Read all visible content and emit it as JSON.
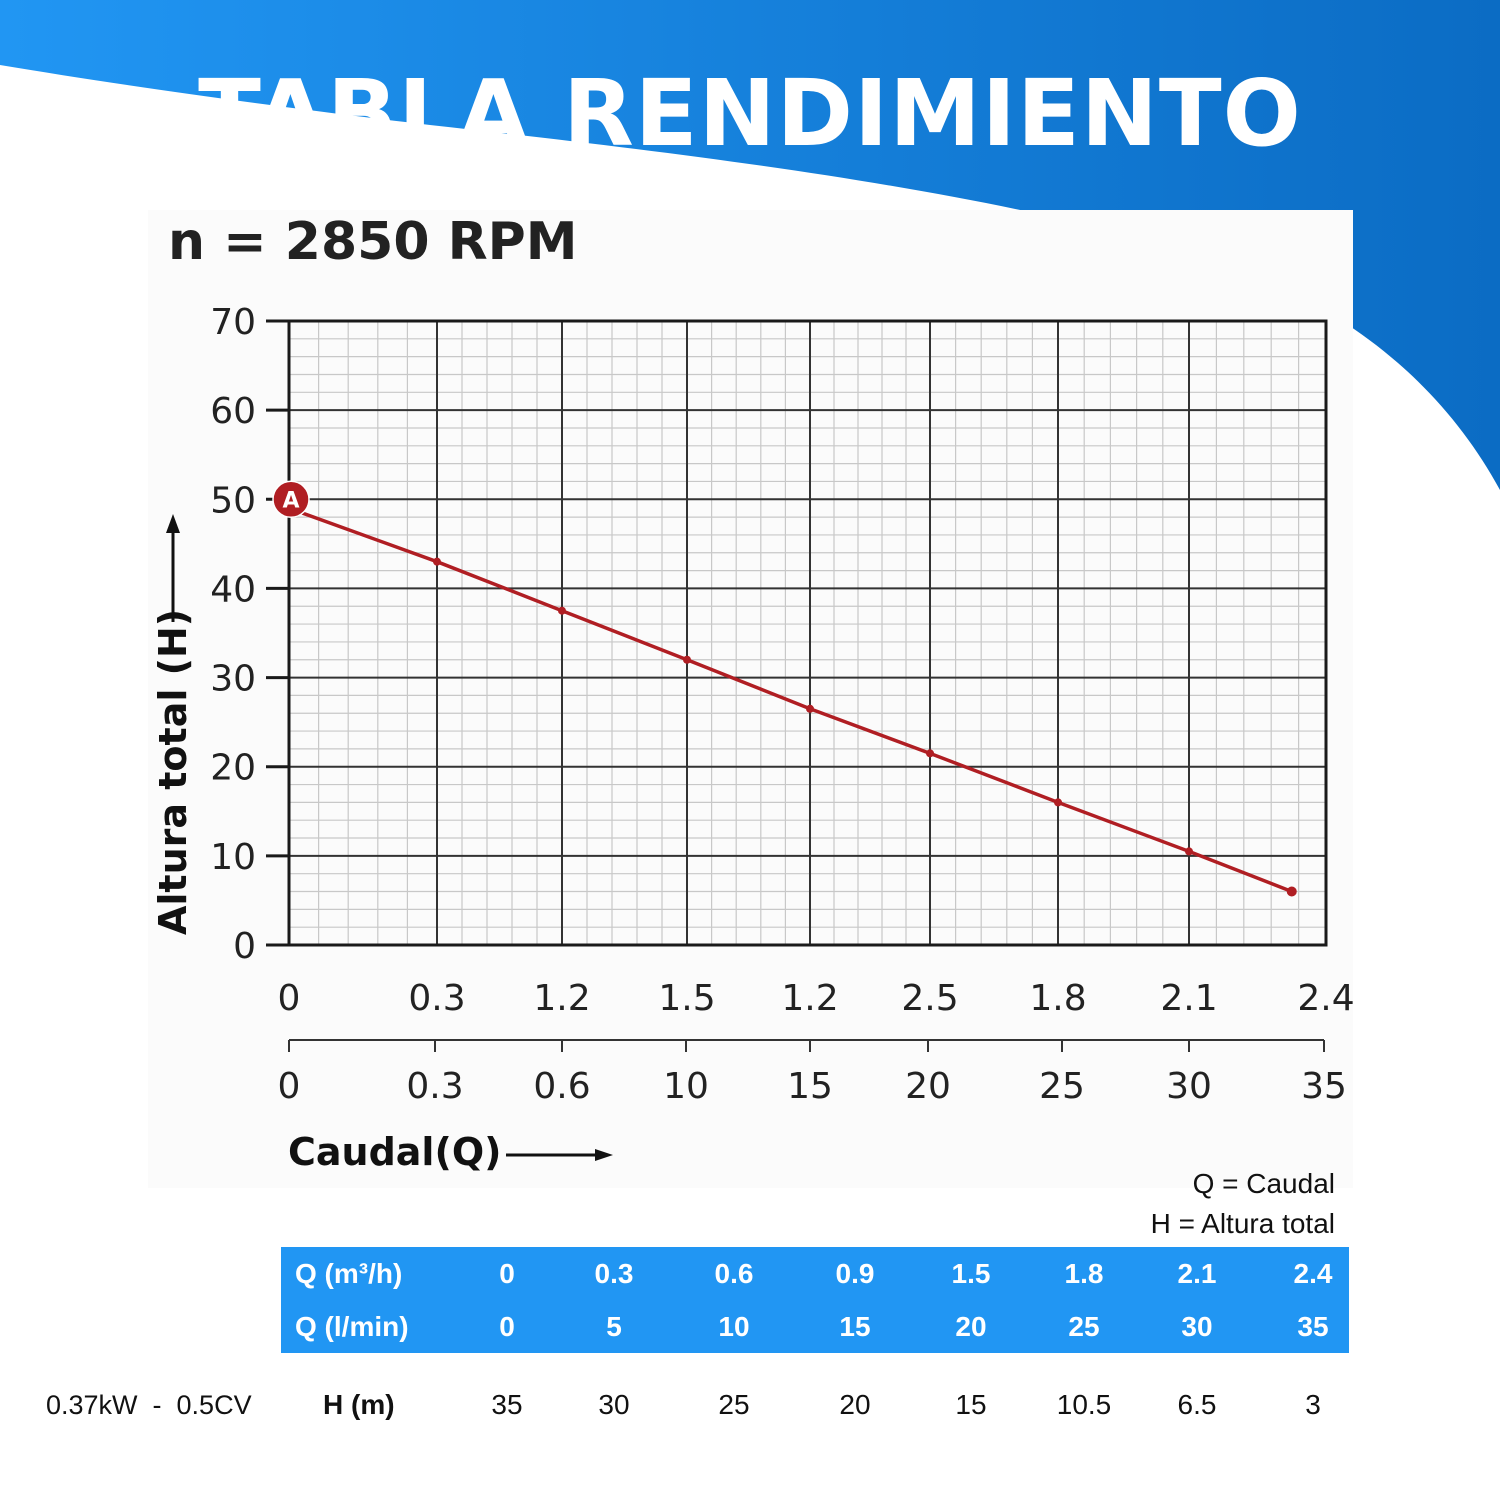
{
  "header": {
    "title": "TABLA RENDIMIENTO",
    "colors": {
      "wave_left": "#2196f3",
      "wave_right": "#0b6cc4"
    }
  },
  "chart": {
    "rpm_label": "n = 2850 RPM",
    "y_axis_label": "Altura total (H)",
    "x_axis_label": "Caudal(Q)",
    "point_marker": "A",
    "line_color": "#b01e23",
    "y_ticks": [
      "0",
      "10",
      "20",
      "30",
      "40",
      "50",
      "60",
      "70"
    ],
    "x_ticks_top": [
      "0",
      "0.3",
      "1.2",
      "1.5",
      "1.2",
      "2.5",
      "1.8",
      "2.1",
      "2.4"
    ],
    "x_ticks_bottom": [
      "0",
      "0.3",
      "0.6",
      "10",
      "15",
      "20",
      "25",
      "30",
      "35"
    ]
  },
  "chart_data": {
    "type": "line",
    "title": "n = 2850 RPM",
    "xlabel": "Caudal(Q)",
    "ylabel": "Altura total (H)",
    "ylim": [
      0,
      70
    ],
    "grid": true,
    "x_tick_labels_top": [
      "0",
      "0.3",
      "1.2",
      "1.5",
      "1.2",
      "2.5",
      "1.8",
      "2.1",
      "2.4"
    ],
    "x_tick_labels_bottom": [
      "0",
      "0.3",
      "0.6",
      "10",
      "15",
      "20",
      "25",
      "30",
      "35"
    ],
    "annotations": [
      {
        "label": "A",
        "x_index": 0,
        "y": 50
      }
    ],
    "series": [
      {
        "name": "H curve",
        "x_index": [
          0,
          1,
          2,
          3,
          4,
          5,
          6,
          7,
          7.75
        ],
        "values": [
          49,
          43,
          37.5,
          32,
          26.5,
          21.5,
          16,
          10.5,
          6
        ]
      }
    ]
  },
  "legend": {
    "q": "Q = Caudal",
    "h": "H = Altura total"
  },
  "table": {
    "rows": [
      {
        "label": "Q (m³/h)",
        "values": [
          "0",
          "0.3",
          "0.6",
          "0.9",
          "1.5",
          "1.8",
          "2.1",
          "2.4"
        ]
      },
      {
        "label": "Q (l/min)",
        "values": [
          "0",
          "5",
          "10",
          "15",
          "20",
          "25",
          "30",
          "35"
        ]
      }
    ],
    "h_row": {
      "motor": "0.37kW  -  0.5CV",
      "label": "H (m)",
      "values": [
        "35",
        "30",
        "25",
        "20",
        "15",
        "10.5",
        "6.5",
        "3"
      ]
    }
  }
}
